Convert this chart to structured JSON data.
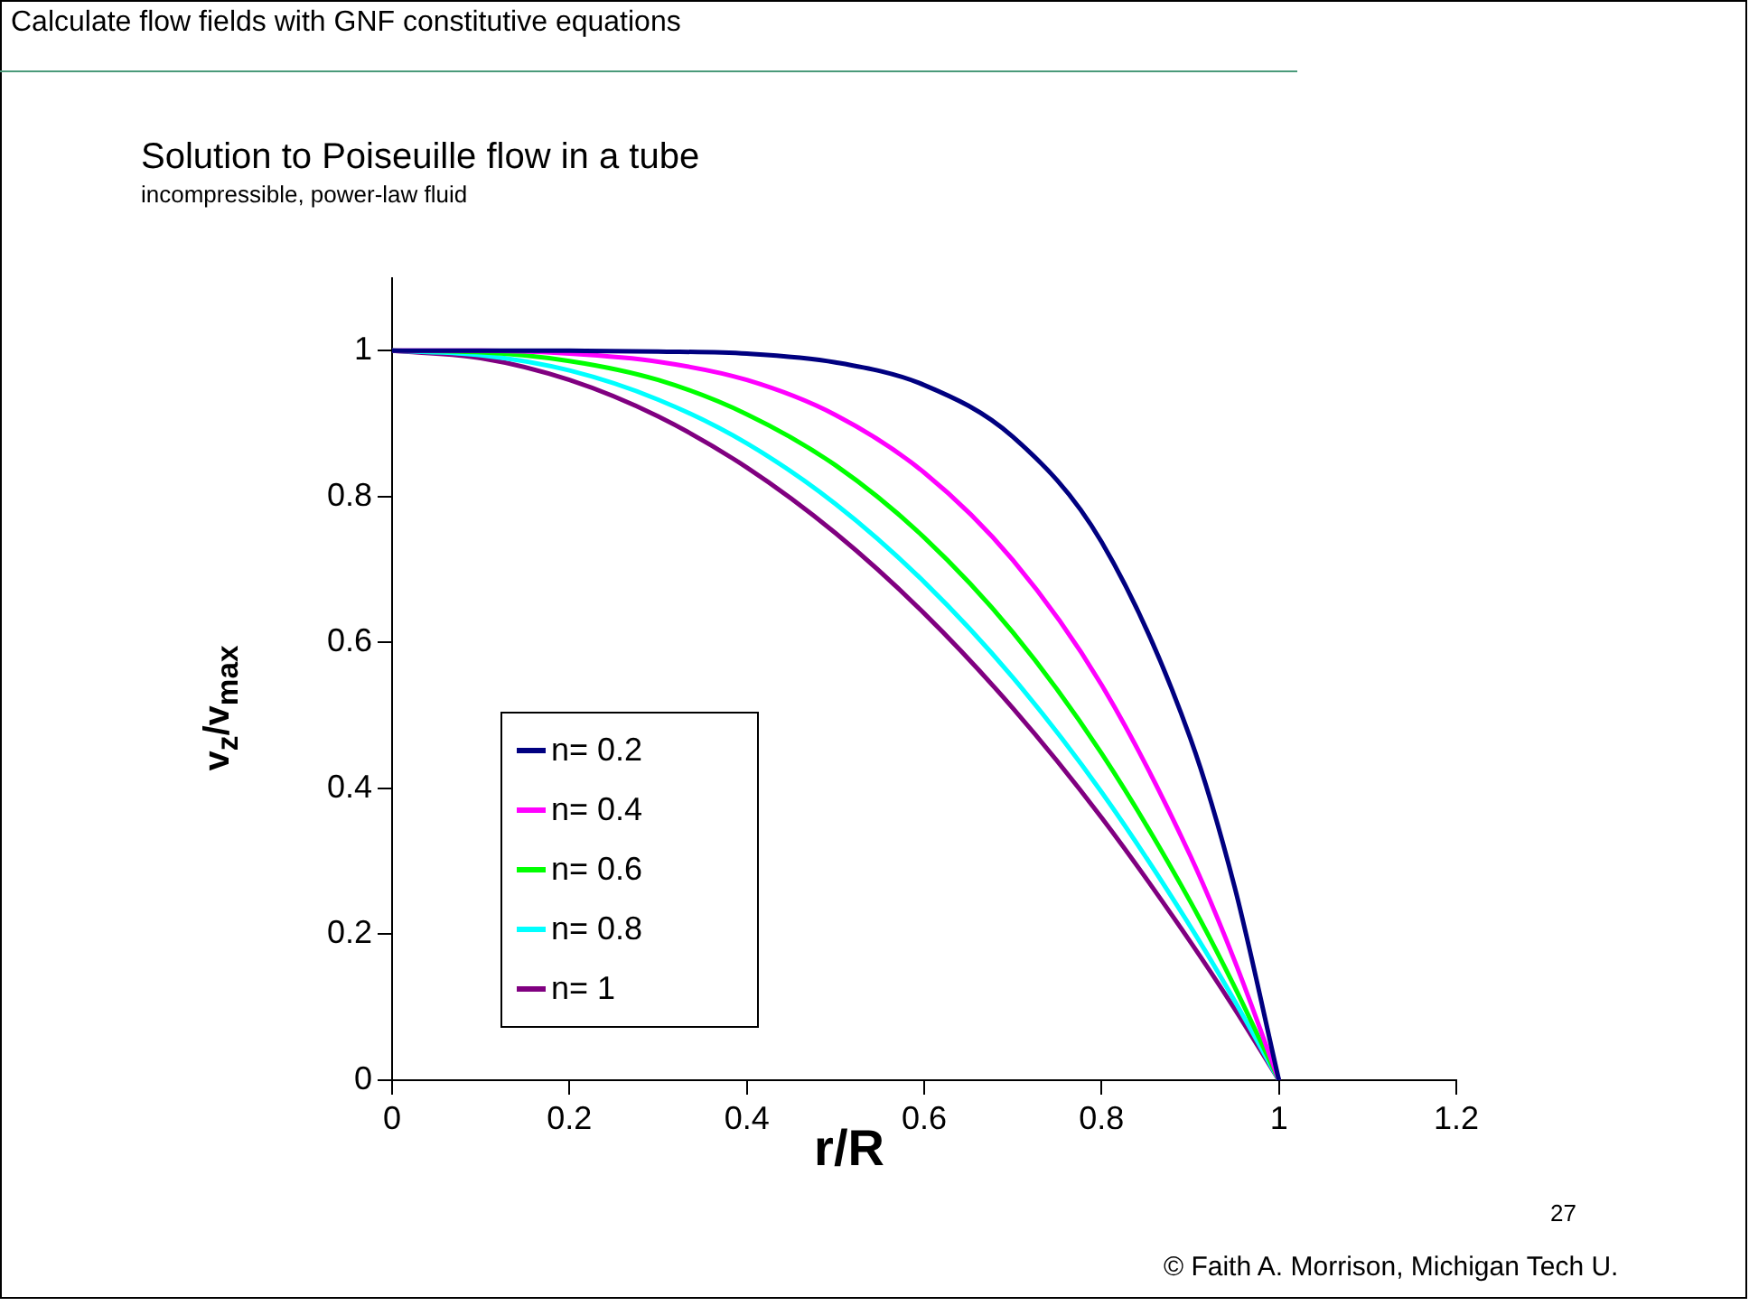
{
  "chart_data": {
    "type": "line",
    "title": "Solution to Poiseuille flow in a tube",
    "subtitle": "incompressible, power-law fluid",
    "xlabel": "r/R",
    "ylabel": "v$_{z}$/v$_{max}$",
    "annotations": [
      "Calculate flow fields with GNF constitutive equations",
      "27",
      "© Faith A. Morrison, Michigan Tech U."
    ],
    "x": [
      0,
      0.1,
      0.2,
      0.3,
      0.4,
      0.5,
      0.6,
      0.7,
      0.8,
      0.9,
      0.95,
      1
    ],
    "series": [
      {
        "name": "n= 0.2",
        "color": "#000080",
        "values": [
          1,
          1,
          1,
          0.999,
          0.996,
          0.984,
          0.953,
          0.882,
          0.738,
          0.469,
          0.265,
          0
        ]
      },
      {
        "name": "n= 0.4",
        "color": "#ff00ff",
        "values": [
          1,
          1,
          0.996,
          0.985,
          0.96,
          0.912,
          0.833,
          0.713,
          0.542,
          0.308,
          0.164,
          0
        ]
      },
      {
        "name": "n= 0.6",
        "color": "#00ff00",
        "values": [
          1,
          0.998,
          0.986,
          0.96,
          0.913,
          0.843,
          0.744,
          0.614,
          0.448,
          0.245,
          0.128,
          0
        ]
      },
      {
        "name": "n= 0.8",
        "color": "#00ffff",
        "values": [
          1,
          0.994,
          0.973,
          0.933,
          0.873,
          0.79,
          0.683,
          0.552,
          0.395,
          0.211,
          0.109,
          0
        ]
      },
      {
        "name": "n= 1",
        "color": "#800080",
        "values": [
          1,
          0.99,
          0.96,
          0.91,
          0.84,
          0.75,
          0.64,
          0.51,
          0.36,
          0.19,
          0.098,
          0
        ]
      }
    ],
    "xlim": [
      0,
      1.2
    ],
    "xticks": [
      0,
      0.2,
      0.4,
      0.6,
      0.8,
      1,
      1.2
    ],
    "ylim": [
      0,
      1.1
    ],
    "yticks": [
      0,
      0.2,
      0.4,
      0.6,
      0.8,
      1
    ],
    "grid": false,
    "legend": "left",
    "marker": "none",
    "line_style": "solid"
  }
}
